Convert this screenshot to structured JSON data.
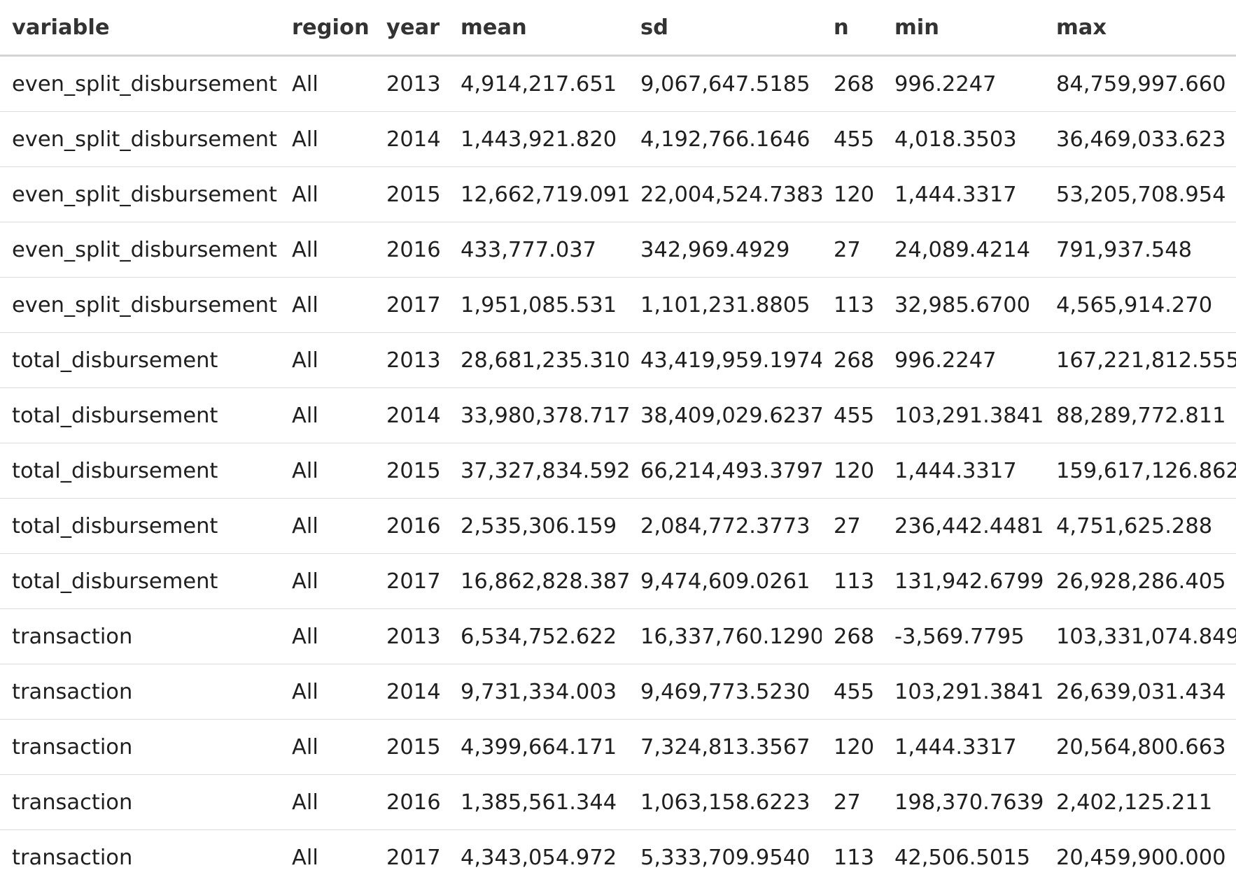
{
  "table": {
    "columns": [
      "variable",
      "region",
      "year",
      "mean",
      "sd",
      "n",
      "min",
      "max"
    ],
    "rows": [
      [
        "even_split_disbursement",
        "All",
        "2013",
        "4,914,217.651",
        "9,067,647.5185",
        "268",
        "996.2247",
        "84,759,997.660"
      ],
      [
        "even_split_disbursement",
        "All",
        "2014",
        "1,443,921.820",
        "4,192,766.1646",
        "455",
        "4,018.3503",
        "36,469,033.623"
      ],
      [
        "even_split_disbursement",
        "All",
        "2015",
        "12,662,719.091",
        "22,004,524.7383",
        "120",
        "1,444.3317",
        "53,205,708.954"
      ],
      [
        "even_split_disbursement",
        "All",
        "2016",
        "433,777.037",
        "342,969.4929",
        "27",
        "24,089.4214",
        "791,937.548"
      ],
      [
        "even_split_disbursement",
        "All",
        "2017",
        "1,951,085.531",
        "1,101,231.8805",
        "113",
        "32,985.6700",
        "4,565,914.270"
      ],
      [
        "total_disbursement",
        "All",
        "2013",
        "28,681,235.310",
        "43,419,959.1974",
        "268",
        "996.2247",
        "167,221,812.555"
      ],
      [
        "total_disbursement",
        "All",
        "2014",
        "33,980,378.717",
        "38,409,029.6237",
        "455",
        "103,291.3841",
        "88,289,772.811"
      ],
      [
        "total_disbursement",
        "All",
        "2015",
        "37,327,834.592",
        "66,214,493.3797",
        "120",
        "1,444.3317",
        "159,617,126.862"
      ],
      [
        "total_disbursement",
        "All",
        "2016",
        "2,535,306.159",
        "2,084,772.3773",
        "27",
        "236,442.4481",
        "4,751,625.288"
      ],
      [
        "total_disbursement",
        "All",
        "2017",
        "16,862,828.387",
        "9,474,609.0261",
        "113",
        "131,942.6799",
        "26,928,286.405"
      ],
      [
        "transaction",
        "All",
        "2013",
        "6,534,752.622",
        "16,337,760.1290",
        "268",
        "-3,569.7795",
        "103,331,074.849"
      ],
      [
        "transaction",
        "All",
        "2014",
        "9,731,334.003",
        "9,469,773.5230",
        "455",
        "103,291.3841",
        "26,639,031.434"
      ],
      [
        "transaction",
        "All",
        "2015",
        "4,399,664.171",
        "7,324,813.3567",
        "120",
        "1,444.3317",
        "20,564,800.663"
      ],
      [
        "transaction",
        "All",
        "2016",
        "1,385,561.344",
        "1,063,158.6223",
        "27",
        "198,370.7639",
        "2,402,125.211"
      ],
      [
        "transaction",
        "All",
        "2017",
        "4,343,054.972",
        "5,333,709.9540",
        "113",
        "42,506.5015",
        "20,459,900.000"
      ]
    ]
  }
}
